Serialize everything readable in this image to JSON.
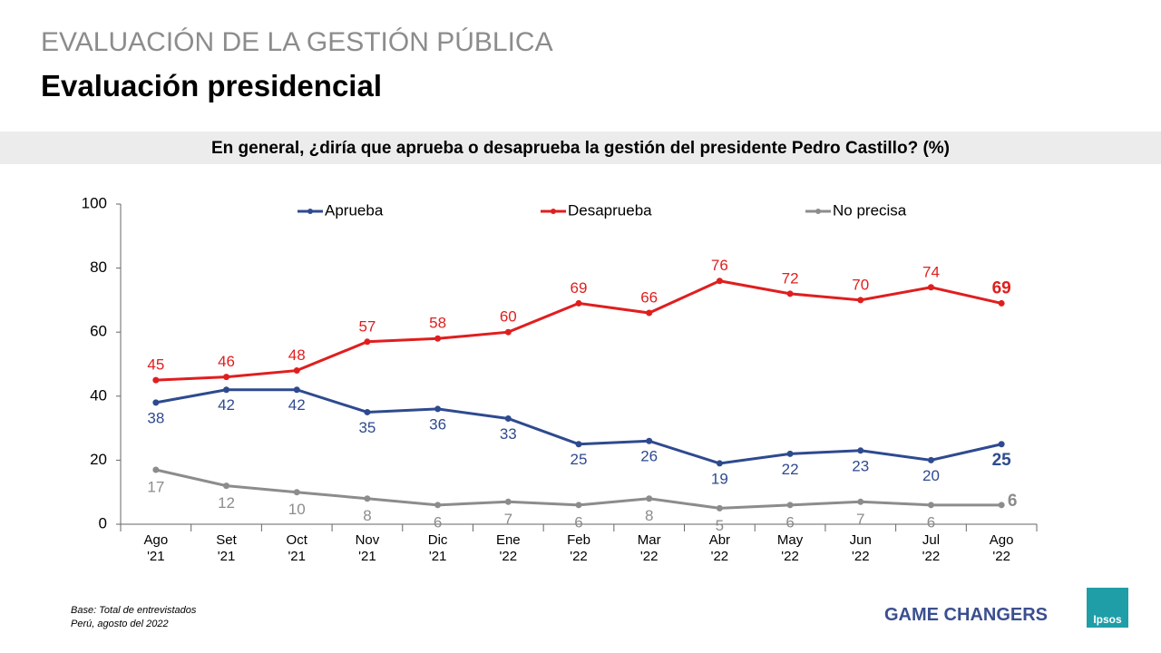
{
  "header": {
    "section": "EVALUACIÓN DE LA GESTIÓN PÚBLICA",
    "title": "Evaluación presidencial"
  },
  "chart_data": {
    "type": "line",
    "title": "En general, ¿diría que aprueba o desaprueba la gestión del presidente Pedro Castillo? (%)",
    "categories": [
      "Ago\n'21",
      "Set\n'21",
      "Oct\n'21",
      "Nov\n'21",
      "Dic\n'21",
      "Ene\n'22",
      "Feb\n'22",
      "Mar\n'22",
      "Abr\n'22",
      "May\n'22",
      "Jun\n'22",
      "Jul\n'22",
      "Ago\n'22"
    ],
    "series": [
      {
        "name": "Aprueba",
        "color": "#2e4a8f",
        "values": [
          38,
          42,
          42,
          35,
          36,
          33,
          25,
          26,
          19,
          22,
          23,
          20,
          25
        ]
      },
      {
        "name": "Desaprueba",
        "color": "#e01e1e",
        "values": [
          45,
          46,
          48,
          57,
          58,
          60,
          69,
          66,
          76,
          72,
          70,
          74,
          69
        ]
      },
      {
        "name": "No precisa",
        "color": "#8c8c8c",
        "values": [
          17,
          12,
          10,
          8,
          6,
          7,
          6,
          8,
          5,
          6,
          7,
          6,
          6
        ]
      }
    ],
    "ylim": [
      0,
      100
    ],
    "yticks": [
      0,
      20,
      40,
      60,
      80,
      100
    ],
    "grid": false,
    "legend": "top"
  },
  "footer": {
    "note": [
      "Base: Total de entrevistados",
      "Perú, agosto del 2022"
    ],
    "tagline": "GAME CHANGERS",
    "logo": "Ipsos"
  }
}
